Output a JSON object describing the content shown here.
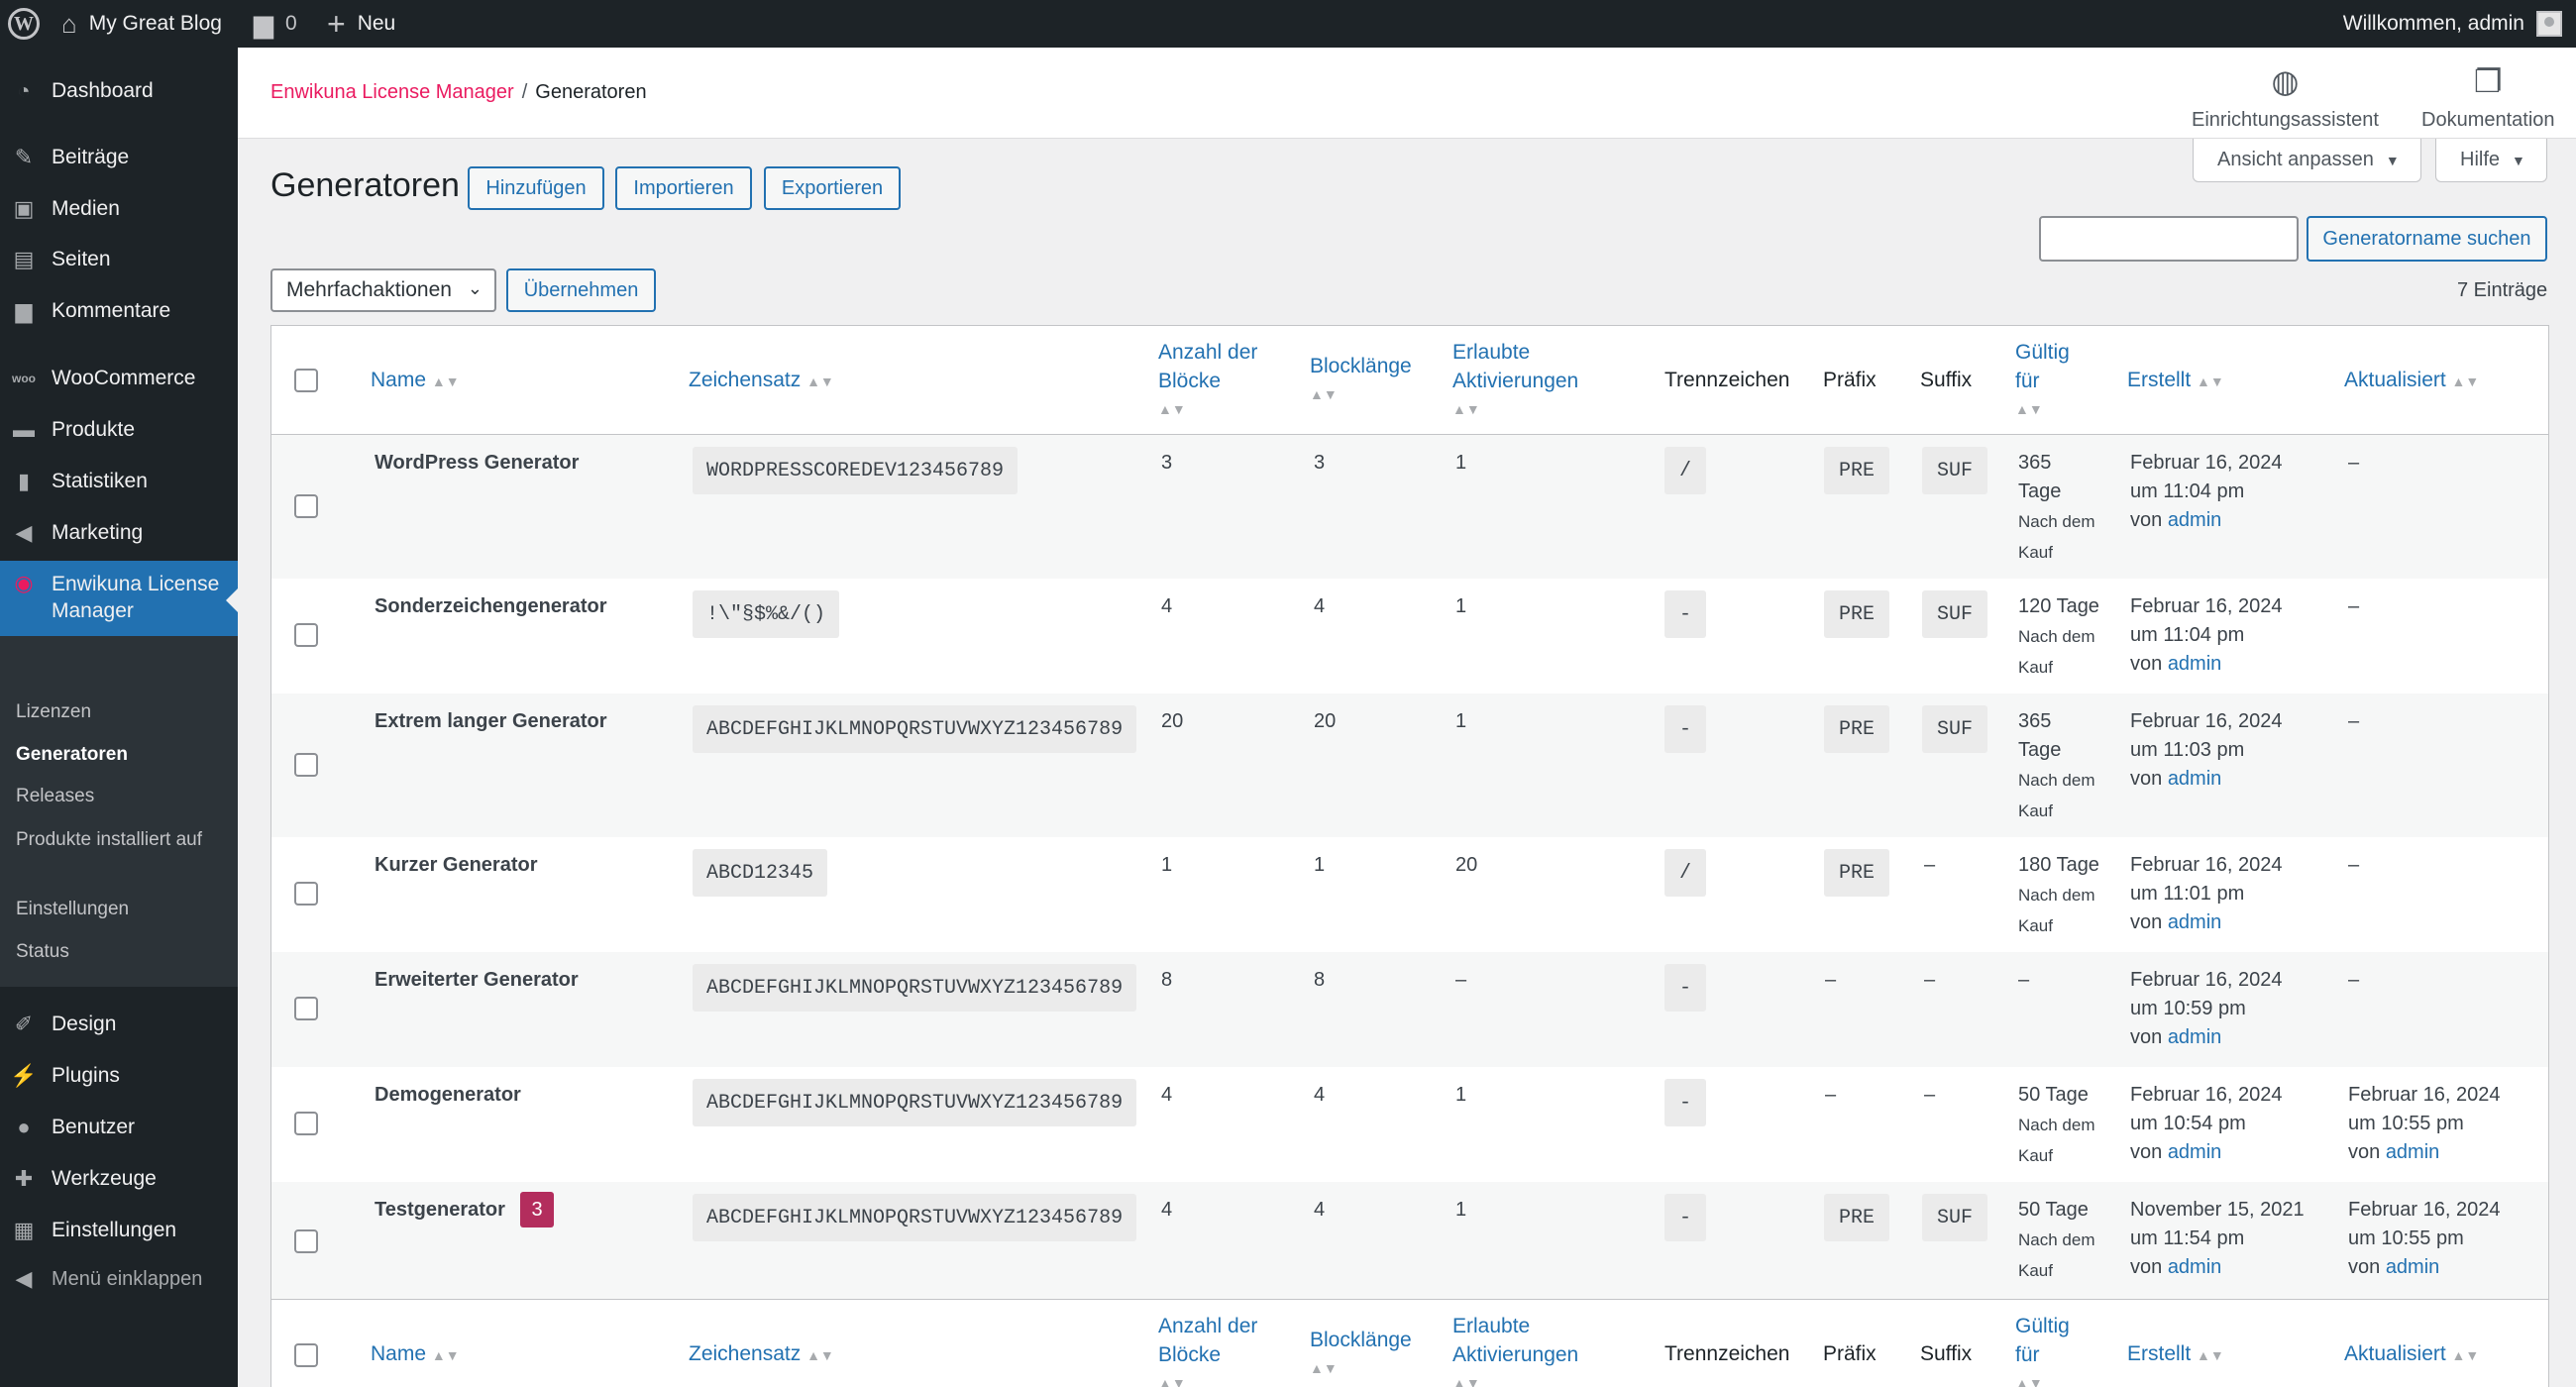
{
  "adminbar": {
    "site_name": "My Great Blog",
    "comments_count": "0",
    "new_label": "Neu",
    "greeting": "Willkommen, admin"
  },
  "sidebar": {
    "items": [
      {
        "label": "Dashboard",
        "icon": "dashboard-icon"
      },
      {
        "label": "Beiträge",
        "icon": "pin-icon"
      },
      {
        "label": "Medien",
        "icon": "media-icon"
      },
      {
        "label": "Seiten",
        "icon": "pages-icon"
      },
      {
        "label": "Kommentare",
        "icon": "comment-icon"
      },
      {
        "label": "WooCommerce",
        "icon": "woo-icon"
      },
      {
        "label": "Produkte",
        "icon": "archive-icon"
      },
      {
        "label": "Statistiken",
        "icon": "bar-chart-icon"
      },
      {
        "label": "Marketing",
        "icon": "megaphone-icon"
      },
      {
        "label": "Enwikuna License Manager",
        "icon": "enwikuna-icon"
      },
      {
        "label": "Design",
        "icon": "brush-icon"
      },
      {
        "label": "Plugins",
        "icon": "plug-icon"
      },
      {
        "label": "Benutzer",
        "icon": "user-icon"
      },
      {
        "label": "Werkzeuge",
        "icon": "wrench-icon"
      },
      {
        "label": "Einstellungen",
        "icon": "settings-icon"
      },
      {
        "label": "Menü einklappen",
        "icon": "collapse-icon"
      }
    ],
    "submenu": [
      "Lizenzen",
      "Generatoren",
      "Releases",
      "Produkte installiert auf",
      "Einstellungen",
      "Status"
    ]
  },
  "header": {
    "breadcrumb_parent": "Enwikuna License Manager",
    "breadcrumb_sep": "/",
    "breadcrumb_current": "Generatoren",
    "setup_label": "Einrichtungsassistent",
    "docs_label": "Dokumentation",
    "screen_options": "Ansicht anpassen",
    "help": "Hilfe"
  },
  "page": {
    "title": "Generatoren",
    "add": "Hinzufügen",
    "import": "Importieren",
    "export": "Exportieren",
    "bulk_select": "Mehrfachaktionen",
    "apply": "Übernehmen",
    "search_button": "Generatorname suchen",
    "count": "7 Einträge"
  },
  "table": {
    "columns": {
      "name": "Name",
      "charset": "Zeichensatz",
      "blocks_1": "Anzahl der",
      "blocks_2": "Blöcke",
      "blocklen": "Blocklänge",
      "activ_1": "Erlaubte",
      "activ_2": "Aktivierungen",
      "separator": "Trennzeichen",
      "prefix": "Präfix",
      "suffix": "Suffix",
      "valid_1": "Gültig",
      "valid_2": "für",
      "created": "Erstellt",
      "updated": "Aktualisiert"
    },
    "rows": [
      {
        "name": "WordPress Generator",
        "charset": "WORDPRESSCOREDEV123456789",
        "blocks": "3",
        "blocklen": "3",
        "activations": "1",
        "separator": "/",
        "prefix": "PRE",
        "suffix": "SUF",
        "valid_a": "365",
        "valid_b": "Tage",
        "valid_c": "Nach dem",
        "valid_d": "Kauf",
        "created_date": "Februar 16, 2024",
        "created_time": "um 11:04 pm",
        "created_by": "von",
        "created_user": "admin",
        "updated": "–"
      },
      {
        "name": "Sonderzeichengenerator",
        "charset": "!\\\"§$%&/()",
        "blocks": "4",
        "blocklen": "4",
        "activations": "1",
        "separator": "-",
        "prefix": "PRE",
        "suffix": "SUF",
        "valid_a": "120 Tage",
        "valid_c": "Nach dem",
        "valid_d": "Kauf",
        "created_date": "Februar 16, 2024",
        "created_time": "um 11:04 pm",
        "created_by": "von",
        "created_user": "admin",
        "updated": "–"
      },
      {
        "name": "Extrem langer Generator",
        "charset": "ABCDEFGHIJKLMNOPQRSTUVWXYZ123456789",
        "blocks": "20",
        "blocklen": "20",
        "activations": "1",
        "separator": "-",
        "prefix": "PRE",
        "suffix": "SUF",
        "valid_a": "365",
        "valid_b": "Tage",
        "valid_c": "Nach dem",
        "valid_d": "Kauf",
        "created_date": "Februar 16, 2024",
        "created_time": "um 11:03 pm",
        "created_by": "von",
        "created_user": "admin",
        "updated": "–"
      },
      {
        "name": "Kurzer Generator",
        "charset": "ABCD12345",
        "blocks": "1",
        "blocklen": "1",
        "activations": "20",
        "separator": "/",
        "prefix": "PRE",
        "suffix": "–",
        "valid_a": "180 Tage",
        "valid_c": "Nach dem",
        "valid_d": "Kauf",
        "created_date": "Februar 16, 2024",
        "created_time": "um 11:01 pm",
        "created_by": "von",
        "created_user": "admin",
        "updated": "–"
      },
      {
        "name": "Erweiterter Generator",
        "charset": "ABCDEFGHIJKLMNOPQRSTUVWXYZ123456789",
        "blocks": "8",
        "blocklen": "8",
        "activations": "–",
        "separator": "-",
        "prefix": "–",
        "suffix": "–",
        "valid_a": "–",
        "created_date": "Februar 16, 2024",
        "created_time": "um 10:59 pm",
        "created_by": "von",
        "created_user": "admin",
        "updated": "–"
      },
      {
        "name": "Demogenerator",
        "charset": "ABCDEFGHIJKLMNOPQRSTUVWXYZ123456789",
        "blocks": "4",
        "blocklen": "4",
        "activations": "1",
        "separator": "-",
        "prefix": "–",
        "suffix": "–",
        "valid_a": "50 Tage",
        "valid_c": "Nach dem",
        "valid_d": "Kauf",
        "created_date": "Februar 16, 2024",
        "created_time": "um 10:54 pm",
        "created_by": "von",
        "created_user": "admin",
        "updated_date": "Februar 16, 2024",
        "updated_time": "um 10:55 pm",
        "updated_by": "von",
        "updated_user": "admin"
      },
      {
        "name": "Testgenerator",
        "badge": "3",
        "charset": "ABCDEFGHIJKLMNOPQRSTUVWXYZ123456789",
        "blocks": "4",
        "blocklen": "4",
        "activations": "1",
        "separator": "-",
        "prefix": "PRE",
        "suffix": "SUF",
        "valid_a": "50 Tage",
        "valid_c": "Nach dem",
        "valid_d": "Kauf",
        "created_date": "November 15, 2021",
        "created_time": "um 11:54 pm",
        "created_by": "von",
        "created_user": "admin",
        "updated_date": "Februar 16, 2024",
        "updated_time": "um 10:55 pm",
        "updated_by": "von",
        "updated_user": "admin"
      }
    ]
  },
  "colors": {
    "adminbar": "#1d2327",
    "accent": "#2271b1",
    "brand": "#ea1b60",
    "badge": "#b32d5d"
  }
}
